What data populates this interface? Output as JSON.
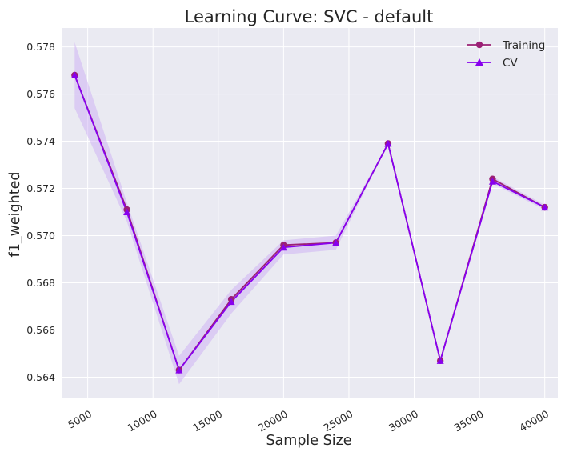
{
  "chart_data": {
    "type": "line",
    "title": "Learning Curve: SVC - default",
    "xlabel": "Sample Size",
    "ylabel": "f1_weighted",
    "x": [
      4000,
      8000,
      12000,
      16000,
      20000,
      24000,
      28000,
      32000,
      36000,
      40000
    ],
    "xlim": [
      3000,
      41000
    ],
    "ylim": [
      0.5631,
      0.5788
    ],
    "x_ticks": [
      5000,
      10000,
      15000,
      20000,
      25000,
      30000,
      35000,
      40000
    ],
    "y_ticks": [
      0.564,
      0.566,
      0.568,
      0.57,
      0.572,
      0.574,
      0.576,
      0.578
    ],
    "x_tick_labels": [
      "5000",
      "10000",
      "15000",
      "20000",
      "25000",
      "30000",
      "35000",
      "40000"
    ],
    "y_tick_labels": [
      "0.564",
      "0.566",
      "0.568",
      "0.570",
      "0.572",
      "0.574",
      "0.576",
      "0.578"
    ],
    "grid": true,
    "legend_position": "top-right",
    "background": "#eaeaf2",
    "series": [
      {
        "name": "Training",
        "marker": "circle",
        "color": "#9b2075",
        "values": [
          0.5768,
          0.5711,
          0.5643,
          0.5673,
          0.5696,
          0.5697,
          0.5739,
          0.5647,
          0.5724,
          0.5712
        ],
        "band_lower": [
          0.5768,
          0.5711,
          0.5643,
          0.5673,
          0.5696,
          0.5697,
          0.5739,
          0.5647,
          0.5724,
          0.5712
        ],
        "band_upper": [
          0.5768,
          0.5711,
          0.5643,
          0.5673,
          0.5696,
          0.5697,
          0.5739,
          0.5647,
          0.5724,
          0.5712
        ]
      },
      {
        "name": "CV",
        "marker": "triangle",
        "color": "#8800ee",
        "values": [
          0.5768,
          0.571,
          0.5643,
          0.5672,
          0.5695,
          0.5697,
          0.5739,
          0.5647,
          0.5723,
          0.5712
        ],
        "band_lower": [
          0.5754,
          0.5706,
          0.5637,
          0.5667,
          0.5692,
          0.5694,
          0.5739,
          0.5647,
          0.5722,
          0.5711
        ],
        "band_upper": [
          0.5782,
          0.5714,
          0.5649,
          0.5677,
          0.5698,
          0.57,
          0.5739,
          0.5647,
          0.5725,
          0.5713
        ],
        "band_color": "#c9a8f5"
      }
    ]
  }
}
